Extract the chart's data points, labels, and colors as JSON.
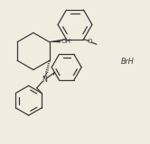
{
  "background_color": "#f0ece0",
  "line_color": "#3a3a3a",
  "line_width": 0.9,
  "text_color": "#3a3a3a",
  "BrH_text": "BrH",
  "OH_text": "OH",
  "O_text": "O",
  "N_text": "N",
  "xlim": [
    0,
    10
  ],
  "ylim": [
    0,
    9.6
  ]
}
